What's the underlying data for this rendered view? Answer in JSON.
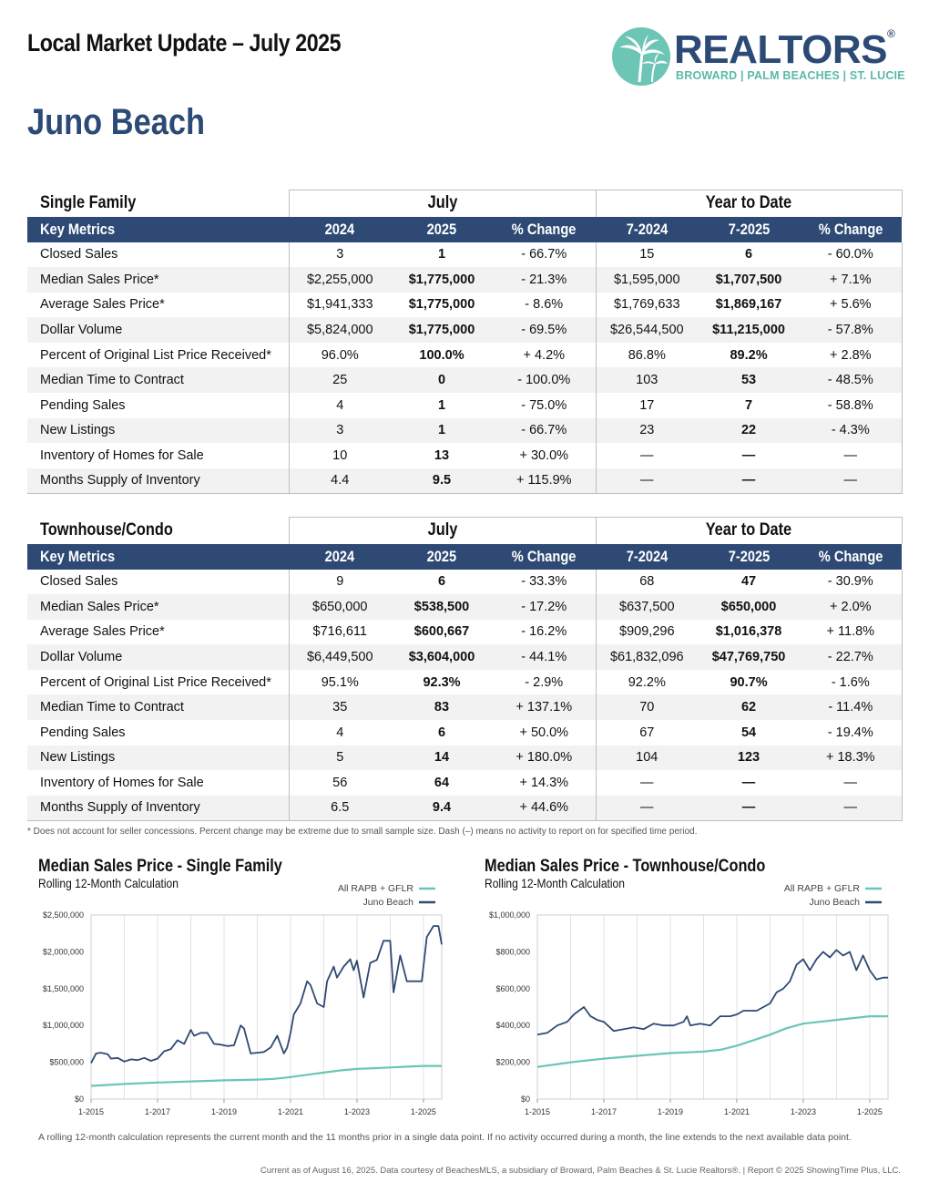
{
  "header": {
    "title": "Local Market Update – July 2025",
    "area": "Juno Beach"
  },
  "logo": {
    "brand": "REALTORS",
    "registered": "®",
    "subtitle": "BROWARD | PALM BEACHES | ST. LUCIE"
  },
  "tables": [
    {
      "section": "Single Family",
      "group1": "July",
      "group2": "Year to Date",
      "headers": [
        "Key Metrics",
        "2024",
        "2025",
        "% Change",
        "7-2024",
        "7-2025",
        "% Change"
      ],
      "rows": [
        [
          "Closed Sales",
          "3",
          "1",
          "- 66.7%",
          "15",
          "6",
          "- 60.0%"
        ],
        [
          "Median Sales Price*",
          "$2,255,000",
          "$1,775,000",
          "- 21.3%",
          "$1,595,000",
          "$1,707,500",
          "+ 7.1%"
        ],
        [
          "Average Sales Price*",
          "$1,941,333",
          "$1,775,000",
          "- 8.6%",
          "$1,769,633",
          "$1,869,167",
          "+ 5.6%"
        ],
        [
          "Dollar Volume",
          "$5,824,000",
          "$1,775,000",
          "- 69.5%",
          "$26,544,500",
          "$11,215,000",
          "- 57.8%"
        ],
        [
          "Percent of Original List Price Received*",
          "96.0%",
          "100.0%",
          "+ 4.2%",
          "86.8%",
          "89.2%",
          "+ 2.8%"
        ],
        [
          "Median Time to Contract",
          "25",
          "0",
          "- 100.0%",
          "103",
          "53",
          "- 48.5%"
        ],
        [
          "Pending Sales",
          "4",
          "1",
          "- 75.0%",
          "17",
          "7",
          "- 58.8%"
        ],
        [
          "New Listings",
          "3",
          "1",
          "- 66.7%",
          "23",
          "22",
          "- 4.3%"
        ],
        [
          "Inventory of Homes for Sale",
          "10",
          "13",
          "+ 30.0%",
          "—",
          "—",
          "—"
        ],
        [
          "Months Supply of Inventory",
          "4.4",
          "9.5",
          "+ 115.9%",
          "—",
          "—",
          "—"
        ]
      ]
    },
    {
      "section": "Townhouse/Condo",
      "group1": "July",
      "group2": "Year to Date",
      "headers": [
        "Key Metrics",
        "2024",
        "2025",
        "% Change",
        "7-2024",
        "7-2025",
        "% Change"
      ],
      "rows": [
        [
          "Closed Sales",
          "9",
          "6",
          "- 33.3%",
          "68",
          "47",
          "- 30.9%"
        ],
        [
          "Median Sales Price*",
          "$650,000",
          "$538,500",
          "- 17.2%",
          "$637,500",
          "$650,000",
          "+ 2.0%"
        ],
        [
          "Average Sales Price*",
          "$716,611",
          "$600,667",
          "- 16.2%",
          "$909,296",
          "$1,016,378",
          "+ 11.8%"
        ],
        [
          "Dollar Volume",
          "$6,449,500",
          "$3,604,000",
          "- 44.1%",
          "$61,832,096",
          "$47,769,750",
          "- 22.7%"
        ],
        [
          "Percent of Original List Price Received*",
          "95.1%",
          "92.3%",
          "- 2.9%",
          "92.2%",
          "90.7%",
          "- 1.6%"
        ],
        [
          "Median Time to Contract",
          "35",
          "83",
          "+ 137.1%",
          "70",
          "62",
          "- 11.4%"
        ],
        [
          "Pending Sales",
          "4",
          "6",
          "+ 50.0%",
          "67",
          "54",
          "- 19.4%"
        ],
        [
          "New Listings",
          "5",
          "14",
          "+ 180.0%",
          "104",
          "123",
          "+ 18.3%"
        ],
        [
          "Inventory of Homes for Sale",
          "56",
          "64",
          "+ 14.3%",
          "—",
          "—",
          "—"
        ],
        [
          "Months Supply of Inventory",
          "6.5",
          "9.4",
          "+ 44.6%",
          "—",
          "—",
          "—"
        ]
      ]
    }
  ],
  "footnote": "* Does not account for seller concessions. Percent change may be extreme due to small sample size. Dash (–) means no activity to report on for specified time period.",
  "chart_data": [
    {
      "type": "line",
      "title": "Median Sales Price - Single Family",
      "subtitle": "Rolling 12-Month Calculation",
      "x_labels": [
        "1-2015",
        "1-2017",
        "1-2019",
        "1-2021",
        "1-2023",
        "1-2025"
      ],
      "y_ticks": [
        "$0",
        "$500,000",
        "$1,000,000",
        "$1,500,000",
        "$2,000,000",
        "$2,500,000"
      ],
      "ylim": [
        0,
        2500000
      ],
      "xlim": [
        2015.0,
        2025.55
      ],
      "legend_position": "top-right",
      "series": [
        {
          "name": "All RAPB + GFLR",
          "color": "#6cc5b5",
          "x": [
            2015.0,
            2016.0,
            2017.0,
            2018.0,
            2019.0,
            2020.0,
            2020.5,
            2021.0,
            2021.5,
            2022.0,
            2022.5,
            2023.0,
            2023.5,
            2024.0,
            2024.5,
            2025.0,
            2025.55
          ],
          "y": [
            180000,
            205000,
            225000,
            240000,
            255000,
            265000,
            275000,
            300000,
            330000,
            360000,
            390000,
            410000,
            420000,
            430000,
            440000,
            450000,
            450000
          ]
        },
        {
          "name": "Juno Beach",
          "color": "#2e4a74",
          "x": [
            2015.0,
            2015.15,
            2015.3,
            2015.5,
            2015.6,
            2015.8,
            2016.0,
            2016.2,
            2016.4,
            2016.6,
            2016.8,
            2017.0,
            2017.2,
            2017.4,
            2017.6,
            2017.8,
            2018.0,
            2018.1,
            2018.3,
            2018.5,
            2018.7,
            2018.9,
            2019.1,
            2019.3,
            2019.5,
            2019.6,
            2019.8,
            2020.0,
            2020.2,
            2020.4,
            2020.6,
            2020.8,
            2020.9,
            2021.0,
            2021.1,
            2021.3,
            2021.5,
            2021.6,
            2021.8,
            2022.0,
            2022.1,
            2022.3,
            2022.4,
            2022.6,
            2022.8,
            2022.9,
            2023.0,
            2023.2,
            2023.4,
            2023.6,
            2023.8,
            2024.0,
            2024.1,
            2024.3,
            2024.5,
            2024.8,
            2024.95,
            2025.1,
            2025.3,
            2025.45,
            2025.55
          ],
          "y": [
            490000,
            620000,
            630000,
            610000,
            550000,
            560000,
            510000,
            540000,
            530000,
            560000,
            520000,
            550000,
            650000,
            680000,
            800000,
            750000,
            940000,
            860000,
            900000,
            900000,
            750000,
            740000,
            720000,
            730000,
            1000000,
            960000,
            620000,
            630000,
            640000,
            700000,
            860000,
            620000,
            700000,
            900000,
            1150000,
            1300000,
            1600000,
            1550000,
            1300000,
            1250000,
            1600000,
            1800000,
            1650000,
            1800000,
            1900000,
            1750000,
            1880000,
            1380000,
            1850000,
            1890000,
            2150000,
            2150000,
            1450000,
            1950000,
            1600000,
            1600000,
            1600000,
            2200000,
            2350000,
            2350000,
            2100000
          ]
        }
      ]
    },
    {
      "type": "line",
      "title": "Median Sales Price - Townhouse/Condo",
      "subtitle": "Rolling 12-Month Calculation",
      "x_labels": [
        "1-2015",
        "1-2017",
        "1-2019",
        "1-2021",
        "1-2023",
        "1-2025"
      ],
      "y_ticks": [
        "$0",
        "$200,000",
        "$400,000",
        "$600,000",
        "$800,000",
        "$1,000,000"
      ],
      "ylim": [
        0,
        1000000
      ],
      "xlim": [
        2015.0,
        2025.55
      ],
      "legend_position": "top-right",
      "series": [
        {
          "name": "All RAPB + GFLR",
          "color": "#6cc5b5",
          "x": [
            2015.0,
            2016.0,
            2017.0,
            2018.0,
            2019.0,
            2020.0,
            2020.5,
            2021.0,
            2021.5,
            2022.0,
            2022.5,
            2023.0,
            2023.5,
            2024.0,
            2024.5,
            2025.0,
            2025.55
          ],
          "y": [
            175000,
            200000,
            220000,
            235000,
            250000,
            258000,
            268000,
            290000,
            320000,
            350000,
            385000,
            410000,
            420000,
            430000,
            440000,
            450000,
            450000
          ]
        },
        {
          "name": "Juno Beach",
          "color": "#2e4a74",
          "x": [
            2015.0,
            2015.3,
            2015.6,
            2015.9,
            2016.1,
            2016.4,
            2016.6,
            2016.8,
            2017.0,
            2017.3,
            2017.6,
            2017.9,
            2018.2,
            2018.5,
            2018.8,
            2019.1,
            2019.4,
            2019.5,
            2019.6,
            2019.9,
            2020.2,
            2020.5,
            2020.8,
            2021.0,
            2021.2,
            2021.4,
            2021.6,
            2021.8,
            2022.0,
            2022.2,
            2022.4,
            2022.6,
            2022.8,
            2023.0,
            2023.2,
            2023.4,
            2023.6,
            2023.8,
            2024.0,
            2024.2,
            2024.4,
            2024.6,
            2024.8,
            2025.0,
            2025.2,
            2025.4,
            2025.55
          ],
          "y": [
            350000,
            360000,
            400000,
            420000,
            460000,
            500000,
            450000,
            430000,
            420000,
            370000,
            380000,
            390000,
            380000,
            410000,
            400000,
            400000,
            420000,
            450000,
            400000,
            410000,
            400000,
            450000,
            450000,
            460000,
            480000,
            480000,
            480000,
            500000,
            520000,
            580000,
            600000,
            640000,
            730000,
            760000,
            700000,
            760000,
            800000,
            770000,
            810000,
            780000,
            800000,
            700000,
            780000,
            700000,
            650000,
            660000,
            660000
          ]
        }
      ]
    }
  ],
  "rolling_note": "A rolling 12-month calculation represents the current month and the 11 months prior in a single data point. If no activity occurred during a month, the line extends to the next available data point.",
  "credits": "Current as of August 16, 2025. Data courtesy of BeachesMLS, a subsidiary of Broward, Palm Beaches & St. Lucie Realtors®. | Report © 2025 ShowingTime Plus, LLC."
}
